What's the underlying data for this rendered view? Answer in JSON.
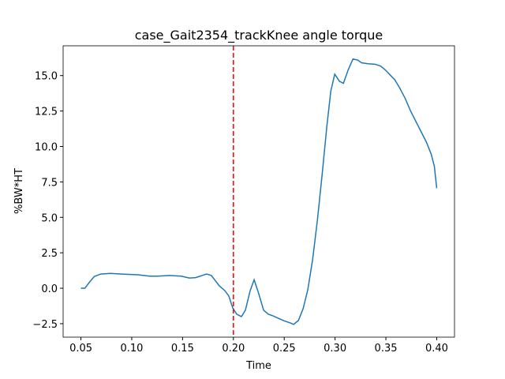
{
  "chart_data": {
    "type": "line",
    "title": "case_Gait2354_trackKnee angle torque",
    "xlabel": "Time",
    "ylabel": "%BW*HT",
    "x": [
      0.05,
      0.0539,
      0.0586,
      0.0632,
      0.0694,
      0.0788,
      0.0904,
      0.106,
      0.1177,
      0.1254,
      0.1371,
      0.1488,
      0.1566,
      0.1628,
      0.1737,
      0.1783,
      0.1861,
      0.1916,
      0.1955,
      0.1994,
      0.2033,
      0.2079,
      0.2118,
      0.2165,
      0.2204,
      0.225,
      0.2297,
      0.2344,
      0.239,
      0.2437,
      0.2499,
      0.2561,
      0.2592,
      0.2639,
      0.2686,
      0.2732,
      0.2779,
      0.2826,
      0.2872,
      0.2919,
      0.2958,
      0.2997,
      0.3043,
      0.3082,
      0.3129,
      0.3176,
      0.3222,
      0.3261,
      0.3323,
      0.3393,
      0.3448,
      0.3494,
      0.3541,
      0.3588,
      0.3634,
      0.3689,
      0.3743,
      0.3821,
      0.3899,
      0.3946,
      0.3977,
      0.4
    ],
    "series": [
      {
        "color": "#1f77b4",
        "values": [
          0,
          0,
          0.44,
          0.83,
          1.0,
          1.05,
          1.0,
          0.95,
          0.85,
          0.85,
          0.9,
          0.85,
          0.72,
          0.75,
          1.0,
          0.9,
          0.17,
          -0.17,
          -0.55,
          -1.4,
          -1.83,
          -2.0,
          -1.55,
          -0.17,
          0.6,
          -0.4,
          -1.55,
          -1.83,
          -1.95,
          -2.1,
          -2.3,
          -2.45,
          -2.55,
          -2.28,
          -1.44,
          -0.1,
          2.0,
          4.78,
          7.95,
          11.4,
          13.9,
          15.1,
          14.6,
          14.45,
          15.4,
          16.17,
          16.1,
          15.9,
          15.83,
          15.8,
          15.67,
          15.4,
          15.05,
          14.7,
          14.15,
          13.4,
          12.5,
          11.4,
          10.3,
          9.45,
          8.6,
          7.05
        ]
      }
    ],
    "vline": {
      "x": 0.2,
      "color": "#ff0000"
    },
    "xlim": [
      0.0325,
      0.4175
    ],
    "ylim": [
      -3.45,
      17.1
    ],
    "xticks": [
      0.05,
      {
        "value": 0.1,
        "label": "0.10"
      },
      0.15,
      {
        "value": 0.2,
        "label": "0.20"
      },
      0.25,
      {
        "value": 0.3,
        "label": "0.30"
      },
      0.35,
      {
        "value": 0.4,
        "label": "0.40"
      }
    ],
    "yticks": [
      {
        "value": -2.5,
        "label": "−2.5"
      },
      {
        "value": 0,
        "label": "0.0"
      },
      2.5,
      {
        "value": 5,
        "label": "5.0"
      },
      7.5,
      {
        "value": 10,
        "label": "10.0"
      },
      12.5,
      {
        "value": 15,
        "label": "15.0"
      }
    ]
  }
}
